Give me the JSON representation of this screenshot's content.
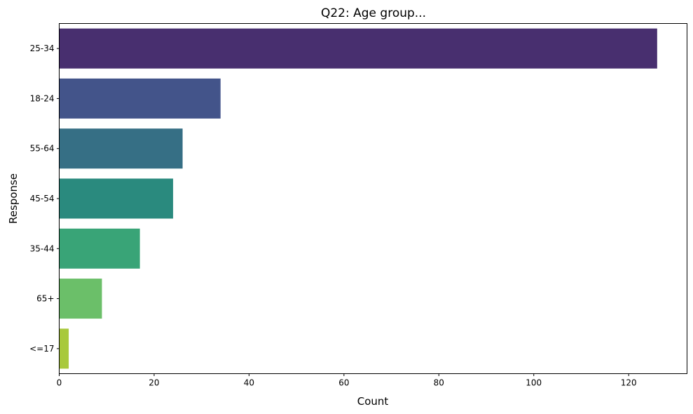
{
  "chart_data": {
    "type": "bar",
    "orientation": "horizontal",
    "title": "Q22: Age group...",
    "xlabel": "Count",
    "ylabel": "Response",
    "categories": [
      "25-34",
      "18-24",
      "55-64",
      "45-54",
      "35-44",
      "65+",
      "<=17"
    ],
    "values": [
      126,
      34,
      26,
      24,
      17,
      9,
      2
    ],
    "colors": [
      "#482f6f",
      "#43548a",
      "#366f85",
      "#2a8a7e",
      "#39a477",
      "#6bbf69",
      "#a8c93b"
    ],
    "xlim": [
      0,
      132.3
    ],
    "xticks": [
      0,
      20,
      40,
      60,
      80,
      100,
      120
    ],
    "grid": false,
    "legend": "none"
  }
}
